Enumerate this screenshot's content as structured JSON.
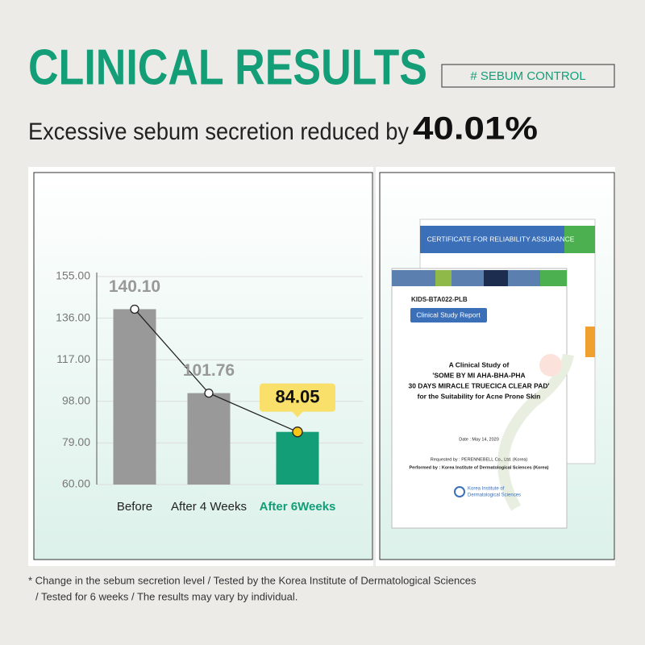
{
  "header": {
    "title": "CLINICAL RESULTS",
    "tag": "# SEBUM CONTROL",
    "subtitle": "Excessive sebum secretion reduced by",
    "highlight": "40.01%"
  },
  "chart_data": {
    "type": "bar",
    "categories": [
      "Before",
      "After 4 Weeks",
      "After 6Weeks"
    ],
    "values": [
      140.1,
      101.76,
      84.05
    ],
    "value_labels": [
      "140.10",
      "101.76",
      "84.05"
    ],
    "colors": [
      "#999999",
      "#999999",
      "#139e78"
    ],
    "highlight_index": 2,
    "line": true,
    "ylim": [
      60,
      155
    ],
    "yticks": [
      {
        "value": 60,
        "label": "60.00"
      },
      {
        "value": 79,
        "label": "79.00"
      },
      {
        "value": 98,
        "label": "98.00"
      },
      {
        "value": 117,
        "label": "117.00"
      },
      {
        "value": 136,
        "label": "136.00"
      },
      {
        "value": 155,
        "label": "155.00"
      }
    ],
    "grid": true
  },
  "document": {
    "certificate": "CERTIFICATE FOR RELIABILITY ASSURANCE",
    "code": "KIDS-BTA022-PLB",
    "report_label": "Clinical Study Report",
    "study_title": [
      "A Clinical Study of",
      "'SOME BY MI AHA-BHA-PHA",
      "30 DAYS MIRACLE TRUECICA CLEAR PAD'",
      "for the Suitability for Acne Prone Skin"
    ],
    "date": "Date : May 14, 2020",
    "requested": "Requested by : PERENNEBELL Co., Ltd. (Korea)",
    "performed": "Performed by : Korea Institute of Dermatological Sciences (Korea)",
    "institute": [
      "Korea Institute of",
      "Dermatological Sciences"
    ]
  },
  "footnote": [
    "* Change in the sebum secretion level / Tested by the Korea Institute of Dermatological Sciences",
    "/ Tested for 6 weeks / The results may vary by individual."
  ]
}
